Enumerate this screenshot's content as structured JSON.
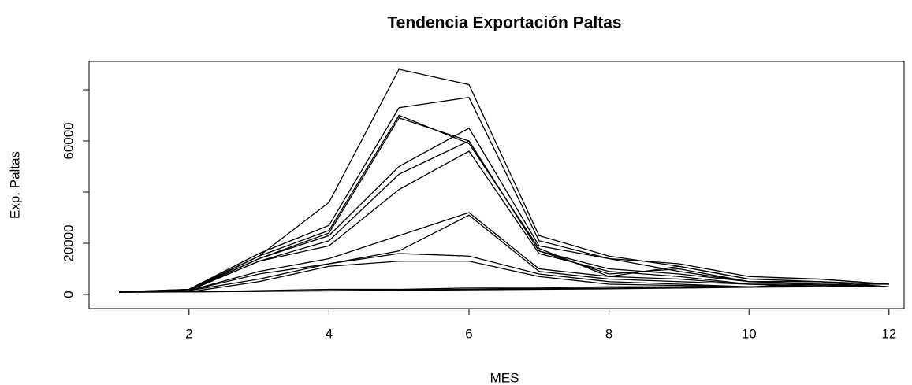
{
  "chart_data": {
    "type": "line",
    "title": "Tendencia Exportación Paltas",
    "xlabel": "MES",
    "ylabel": "Exp. Paltas",
    "x": [
      1,
      2,
      3,
      4,
      5,
      6,
      7,
      8,
      9,
      10,
      11,
      12
    ],
    "xlim": [
      0.56,
      12.44
    ],
    "xticks": [
      2,
      4,
      6,
      8,
      10,
      12
    ],
    "ylim": [
      -5500,
      91000
    ],
    "yticks": [
      0,
      20000,
      60000
    ],
    "yticks_unlabeled": [
      40000,
      80000
    ],
    "grid": false,
    "series": [
      {
        "color": "#000000",
        "values": [
          1000,
          2000,
          15000,
          36000,
          88000,
          82000,
          23000,
          15000,
          11000,
          6000,
          6000,
          4000
        ]
      },
      {
        "color": "#000000",
        "values": [
          1000,
          2000,
          16000,
          27000,
          73000,
          77000,
          21000,
          14000,
          12000,
          7000,
          6000,
          4000
        ]
      },
      {
        "color": "#000000",
        "values": [
          1000,
          1500,
          15000,
          25000,
          70000,
          59000,
          18000,
          7000,
          11000,
          6000,
          5000,
          4000
        ]
      },
      {
        "color": "#000000",
        "values": [
          1000,
          1500,
          14000,
          24000,
          69000,
          60000,
          17000,
          8000,
          10000,
          5000,
          5000,
          3000
        ]
      },
      {
        "color": "#000000",
        "values": [
          1000,
          1500,
          14000,
          23000,
          50000,
          65000,
          19000,
          14000,
          9000,
          5000,
          5000,
          3000
        ]
      },
      {
        "color": "#000000",
        "values": [
          1000,
          1500,
          13000,
          21000,
          47000,
          60000,
          17000,
          10000,
          8000,
          5000,
          4000,
          3000
        ]
      },
      {
        "color": "#000000",
        "values": [
          1000,
          1500,
          13000,
          19000,
          41000,
          56000,
          16000,
          9000,
          7000,
          4000,
          4000,
          3000
        ]
      },
      {
        "color": "#000000",
        "values": [
          1000,
          1500,
          9000,
          14000,
          23000,
          32000,
          10000,
          7000,
          6000,
          4000,
          4000,
          3000
        ]
      },
      {
        "color": "#000000",
        "values": [
          1000,
          1500,
          8000,
          12000,
          17000,
          31000,
          9000,
          6000,
          5000,
          4000,
          3000,
          3000
        ]
      },
      {
        "color": "#000000",
        "values": [
          1000,
          1500,
          6000,
          12000,
          16000,
          15000,
          8000,
          5000,
          4000,
          3000,
          3000,
          3000
        ]
      },
      {
        "color": "#000000",
        "values": [
          1000,
          1000,
          5000,
          11000,
          13000,
          13000,
          7000,
          4000,
          3500,
          3000,
          3000,
          3000
        ]
      },
      {
        "color": "#000000",
        "values": [
          1000,
          1000,
          1500,
          2000,
          2000,
          2500,
          2500,
          3000,
          3000,
          3000,
          4000,
          4000
        ]
      },
      {
        "color": "#000000",
        "values": [
          1000,
          1000,
          1200,
          1500,
          1800,
          2000,
          2200,
          2500,
          2800,
          3000,
          3500,
          3000
        ]
      },
      {
        "color": "#000000",
        "values": [
          800,
          1000,
          1200,
          1400,
          1600,
          1800,
          2000,
          2200,
          2500,
          2800,
          3000,
          3000
        ]
      }
    ]
  }
}
